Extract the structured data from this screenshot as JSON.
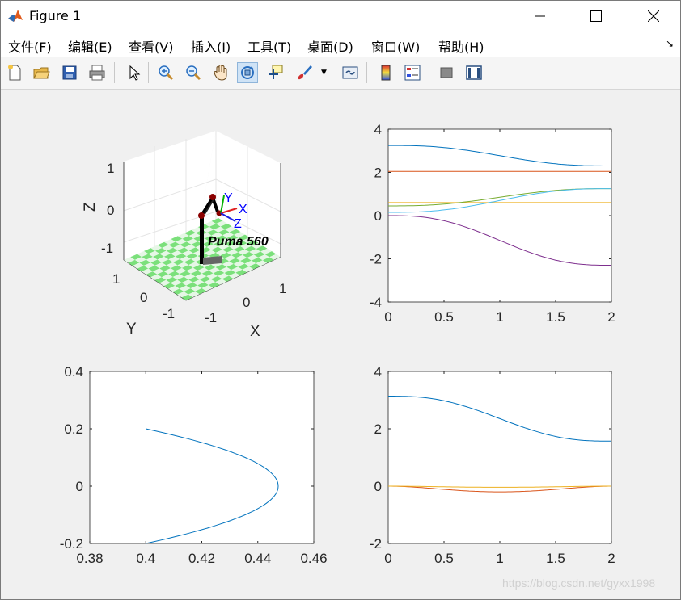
{
  "window": {
    "title": "Figure 1"
  },
  "menu": [
    "文件(F)",
    "编辑(E)",
    "查看(V)",
    "插入(I)",
    "工具(T)",
    "桌面(D)",
    "窗口(W)",
    "帮助(H)"
  ],
  "toolbar": {
    "icons": [
      "new-file-icon",
      "open-file-icon",
      "save-icon",
      "print-icon",
      "pointer-icon",
      "zoom-in-icon",
      "zoom-out-icon",
      "pan-hand-icon",
      "rotate-3d-icon",
      "data-cursor-icon",
      "brush-icon",
      "link-plot-icon",
      "colorbar-icon",
      "legend-icon",
      "hide-plot-tools-icon",
      "show-plot-tools-icon"
    ],
    "active": "rotate-3d-icon"
  },
  "robot3d": {
    "robot_label": "Puma 560",
    "x_label": "X",
    "y_label": "Y",
    "z_label": "Z",
    "x_ticks": [
      "-1",
      "0",
      "1"
    ],
    "y_ticks": [
      "-1",
      "0",
      "1"
    ],
    "z_ticks": [
      "-1",
      "0",
      "1"
    ],
    "frame_labels": [
      "X",
      "Y",
      "Z"
    ]
  },
  "chart_data": [
    {
      "type": "line",
      "title": "",
      "xlim": [
        0,
        2
      ],
      "ylim": [
        -4,
        4
      ],
      "x_ticks": [
        "0",
        "0.5",
        "1",
        "1.5",
        "2"
      ],
      "y_ticks": [
        "-4",
        "-2",
        "0",
        "2",
        "4"
      ],
      "series": [
        {
          "color": "#0072bd",
          "start": 3.25,
          "end": 2.3
        },
        {
          "color": "#d95319",
          "start": 2.05,
          "end": 2.05
        },
        {
          "color": "#edb120",
          "start": 0.6,
          "end": 0.6
        },
        {
          "color": "#7e2f8e",
          "start": 0.0,
          "end": -2.3
        },
        {
          "color": "#77ac30",
          "start": 0.45,
          "end": 1.25
        },
        {
          "color": "#4dbeee",
          "start": 0.15,
          "end": 1.25
        }
      ]
    },
    {
      "type": "line",
      "title": "",
      "xlim": [
        0.38,
        0.46
      ],
      "ylim": [
        -0.2,
        0.4
      ],
      "x_ticks": [
        "0.38",
        "0.4",
        "0.42",
        "0.44",
        "0.46"
      ],
      "y_ticks": [
        "-0.2",
        "0",
        "0.2",
        "0.4"
      ],
      "series": [
        {
          "color": "#0072bd",
          "x": [
            0.4,
            0.4247,
            0.4387,
            0.4447,
            0.4473,
            0.4447,
            0.4387,
            0.4247,
            0.4
          ],
          "y": [
            0.2,
            0.15,
            0.1,
            0.05,
            0.0,
            -0.05,
            -0.1,
            -0.15,
            -0.2
          ]
        }
      ]
    },
    {
      "type": "line",
      "title": "",
      "xlim": [
        0,
        2
      ],
      "ylim": [
        -2,
        4
      ],
      "x_ticks": [
        "0",
        "0.5",
        "1",
        "1.5",
        "2"
      ],
      "y_ticks": [
        "-2",
        "0",
        "2",
        "4"
      ],
      "series": [
        {
          "color": "#0072bd",
          "start": 3.14,
          "end": 1.57
        },
        {
          "color": "#d95319",
          "dip": -0.2
        },
        {
          "color": "#edb120",
          "dip": -0.04
        }
      ]
    }
  ],
  "watermark": "https://blog.csdn.net/gyxx1998"
}
